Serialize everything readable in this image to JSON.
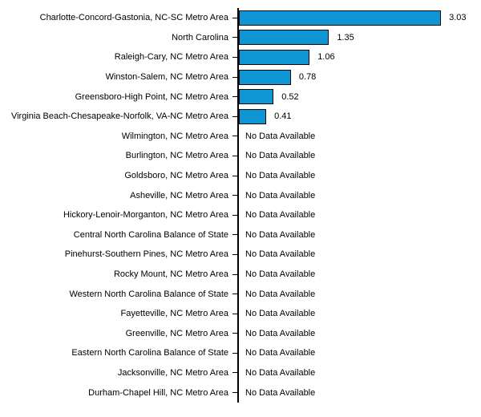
{
  "chart_data": {
    "type": "bar",
    "orientation": "horizontal",
    "categories": [
      "Charlotte-Concord-Gastonia, NC-SC Metro Area",
      "North Carolina",
      "Raleigh-Cary, NC Metro Area",
      "Winston-Salem, NC Metro Area",
      "Greensboro-High Point, NC Metro Area",
      "Virginia Beach-Chesapeake-Norfolk, VA-NC Metro Area",
      "Wilmington, NC Metro Area",
      "Burlington, NC Metro Area",
      "Goldsboro, NC Metro Area",
      "Asheville, NC Metro Area",
      "Hickory-Lenoir-Morganton, NC Metro Area",
      "Central North Carolina Balance of State",
      "Pinehurst-Southern Pines, NC Metro Area",
      "Rocky Mount, NC Metro Area",
      "Western North Carolina Balance of State",
      "Fayetteville, NC Metro Area",
      "Greenville, NC Metro Area",
      "Eastern North Carolina Balance of State",
      "Jacksonville, NC Metro Area",
      "Durham-Chapel Hill, NC Metro Area"
    ],
    "values": [
      3.03,
      1.35,
      1.06,
      0.78,
      0.52,
      0.41,
      null,
      null,
      null,
      null,
      null,
      null,
      null,
      null,
      null,
      null,
      null,
      null,
      null,
      null
    ],
    "value_labels": [
      "3.03",
      "1.35",
      "1.06",
      "0.78",
      "0.52",
      "0.41"
    ],
    "no_data_label": "No Data Available",
    "xlim": [
      0,
      3.65
    ],
    "grid": false,
    "legend": false,
    "bar_color": "#0e96d4",
    "bar_border_color": "#0a0a0a",
    "axis_color": "#000000",
    "text_color": "#000000"
  }
}
